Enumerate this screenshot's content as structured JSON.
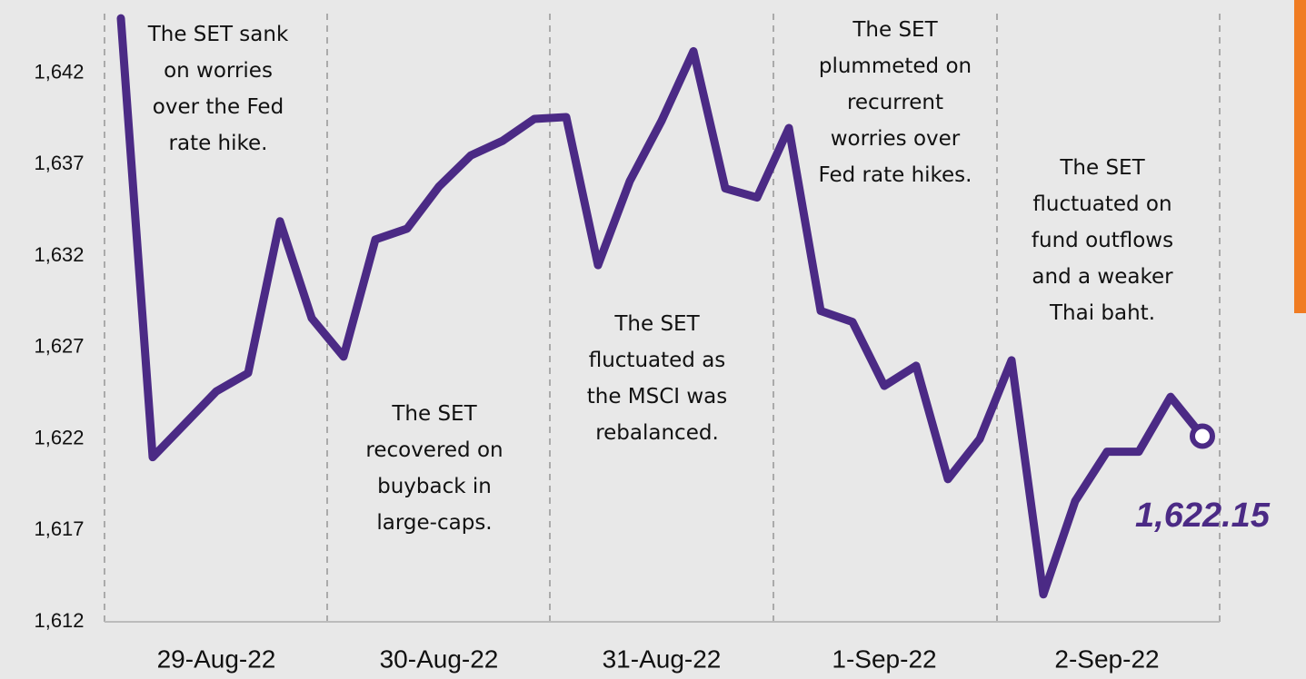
{
  "chart_data": {
    "type": "line",
    "categories": [
      null,
      null,
      null,
      "29-Aug-22",
      null,
      null,
      null,
      null,
      null,
      null,
      "30-Aug-22",
      null,
      null,
      null,
      null,
      null,
      null,
      "31-Aug-22",
      null,
      null,
      null,
      null,
      null,
      null,
      "1-Sep-22",
      null,
      null,
      null,
      null,
      null,
      null,
      "2-Sep-22",
      null,
      null,
      null
    ],
    "series": [
      {
        "color": "#4b2a85",
        "values": [
          1645.0,
          1621.0,
          1622.8,
          1624.6,
          1625.6,
          1633.9,
          1628.6,
          1626.5,
          1632.9,
          1633.5,
          1635.8,
          1637.5,
          1638.3,
          1639.5,
          1639.6,
          1631.5,
          1636.1,
          1639.4,
          1643.2,
          1635.7,
          1635.2,
          1639.0,
          1629.0,
          1628.4,
          1624.9,
          1626.0,
          1619.8,
          1622.0,
          1626.3,
          1613.5,
          1618.6,
          1621.3,
          1621.3,
          1624.3,
          1622.15
        ],
        "value_labels": [
          null,
          null,
          null,
          null,
          null,
          null,
          null,
          null,
          null,
          null,
          null,
          null,
          null,
          null,
          null,
          null,
          null,
          null,
          null,
          null,
          null,
          null,
          null,
          null,
          null,
          null,
          null,
          null,
          null,
          null,
          null,
          null,
          null,
          null,
          "1,622.15"
        ]
      }
    ],
    "ylim": [
      1612,
      1646
    ],
    "yticks": [
      {
        "value": 1612,
        "label": "1,612"
      },
      {
        "value": 1617,
        "label": "1,617"
      },
      {
        "value": 1622,
        "label": "1,622"
      },
      {
        "value": 1627,
        "label": "1,627"
      },
      {
        "value": 1632,
        "label": "1,632"
      },
      {
        "value": 1637,
        "label": "1,637"
      },
      {
        "value": 1642,
        "label": "1,642"
      }
    ],
    "annotations": [
      "The SET sank\non worries\nover the Fed\nrate hike.",
      "The SET\nrecovered on\nbuyback in\nlarge-caps.",
      "The SET\nfluctuated as\nthe MSCI was\nrebalanced.",
      "The SET\nplummeted on\nrecurrent\nworries over\nFed rate hikes.",
      "The SET\nfluctuated on\nfund outflows\nand a weaker\nThai baht."
    ]
  }
}
